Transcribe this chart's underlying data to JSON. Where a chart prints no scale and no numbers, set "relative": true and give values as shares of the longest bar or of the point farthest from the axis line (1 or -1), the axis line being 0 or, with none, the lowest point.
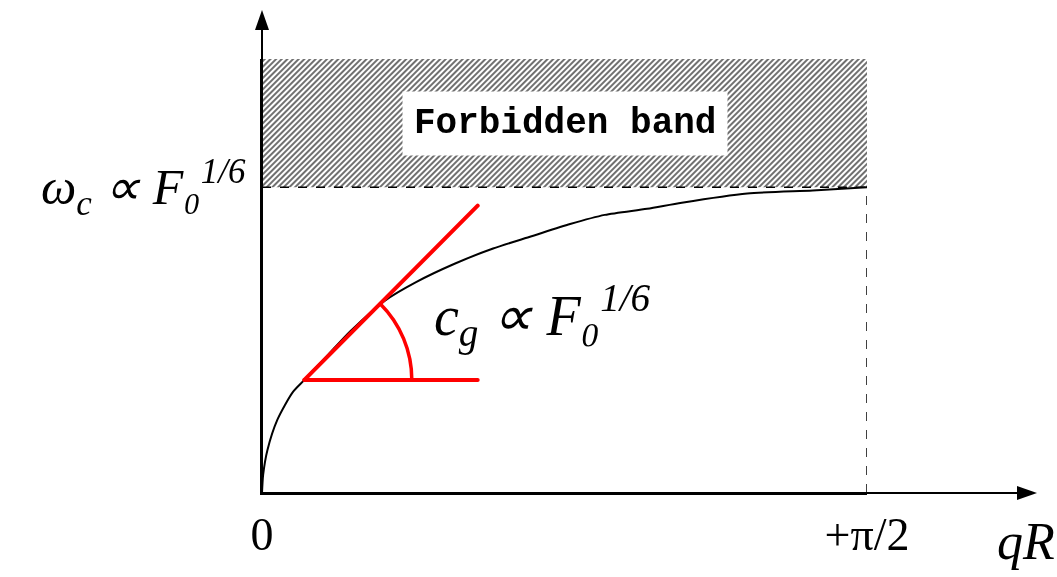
{
  "chart_data": {
    "type": "line",
    "relative": true,
    "xlabel": "qR",
    "xlim": [
      0,
      1.5708
    ],
    "xticks": [
      0,
      {
        "value": 1.5708,
        "label": "+π/2"
      }
    ],
    "series": [
      {
        "color": "#000000",
        "x": [
          0,
          0.003,
          0.014,
          0.04,
          0.08,
          0.11,
          0.17,
          0.23,
          0.32,
          0.4,
          0.5,
          0.6,
          0.7,
          0.8,
          0.89,
          1,
          1.09,
          1.26,
          1.43,
          1.5708
        ],
        "values": [
          0,
          0.06,
          0.14,
          0.24,
          0.33,
          0.37,
          0.45,
          0.53,
          0.63,
          0.69,
          0.75,
          0.8,
          0.84,
          0.88,
          0.91,
          0.93,
          0.95,
          0.98,
          0.99,
          1
        ]
      },
      {
        "color": "#ff0000",
        "x": [
          0.11,
          0.56
        ],
        "values": [
          0.37,
          0.94
        ]
      },
      {
        "color": "#ff0000",
        "x": [
          0.11,
          0.56
        ],
        "values": [
          0.37,
          0.37
        ]
      }
    ],
    "bands": [
      {
        "axis": "y",
        "from": 1,
        "to": 1.42,
        "label": "Forbidden band",
        "color": "#333333"
      }
    ],
    "ref_lines": [
      {
        "axis": "y",
        "value": 1,
        "label": "ω$_{c}$ ∝ F₀$^{1/6}$",
        "line_style": "dashed"
      },
      {
        "axis": "x",
        "value": 1.5708,
        "line_style": "dashed"
      }
    ],
    "annotations": [
      "c$_{g}$ ∝ F₀$^{1/6}$"
    ],
    "tick_labels": "x",
    "line_style": "solid"
  }
}
